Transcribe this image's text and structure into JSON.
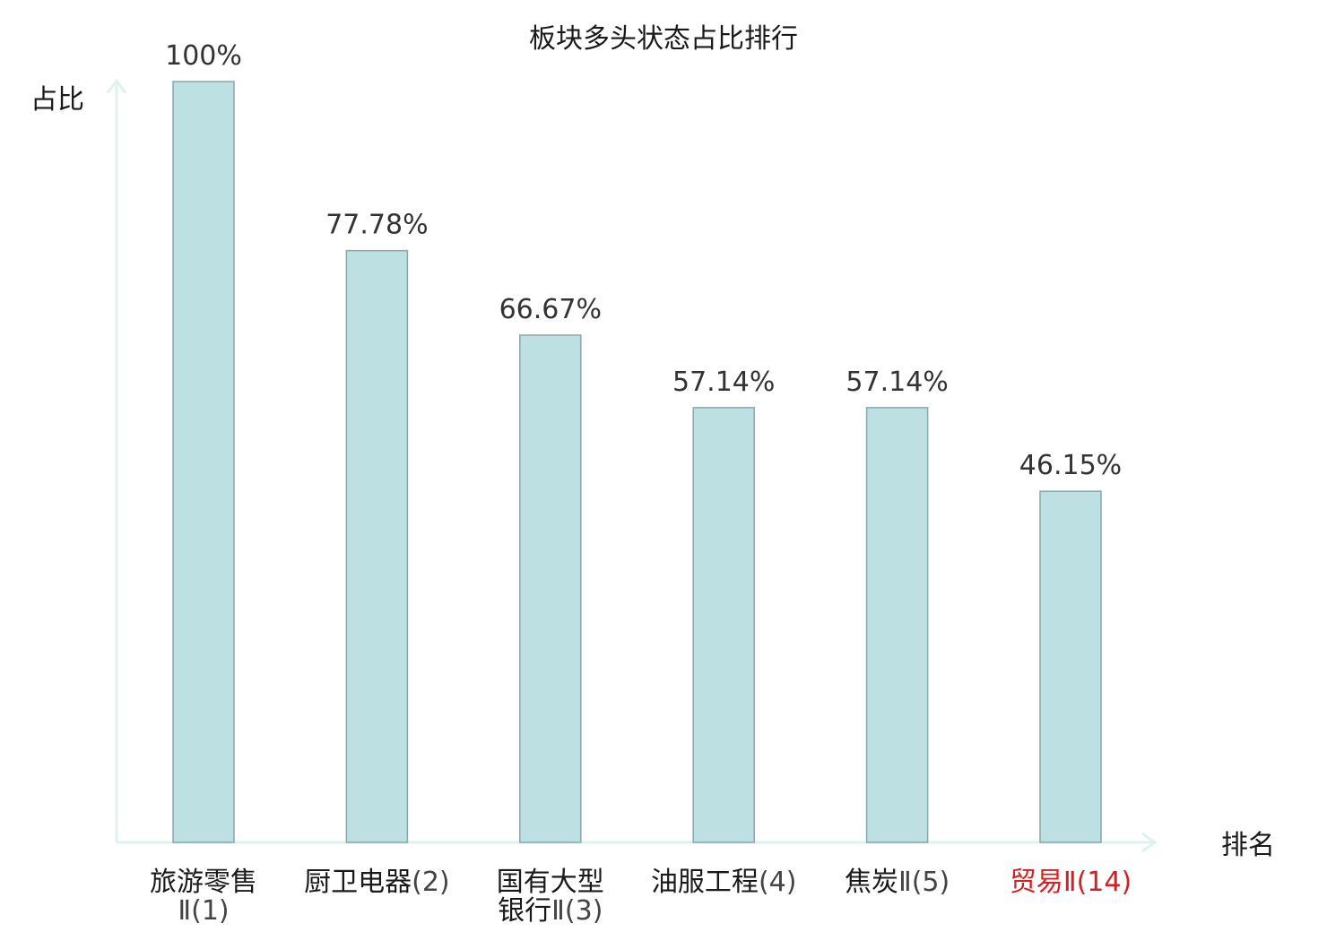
{
  "chart_data": {
    "type": "bar",
    "title": "板块多头状态占比排行",
    "ylabel": "占比",
    "xlabel": "排名",
    "ylim": [
      0,
      100
    ],
    "grid": false,
    "categories": [
      {
        "name_lines": [
          "旅游零售"
        ],
        "suffix_lines": [
          "Ⅱ(1)"
        ],
        "highlight": false
      },
      {
        "name_lines": [
          "厨卫电器"
        ],
        "suffix_lines": [
          "(2)"
        ],
        "highlight": false
      },
      {
        "name_lines": [
          "国有大型",
          "银行"
        ],
        "suffix_lines": [
          "",
          "Ⅱ(3)"
        ],
        "highlight": false
      },
      {
        "name_lines": [
          "油服工程"
        ],
        "suffix_lines": [
          "(4)"
        ],
        "highlight": false
      },
      {
        "name_lines": [
          "焦炭"
        ],
        "suffix_lines": [
          "Ⅱ(5)"
        ],
        "highlight": false
      },
      {
        "name_lines": [
          "贸易"
        ],
        "suffix_lines": [
          "Ⅱ(14)"
        ],
        "highlight": true
      }
    ],
    "values": [
      100,
      77.78,
      66.67,
      57.14,
      57.14,
      46.15
    ],
    "value_labels": [
      "100%",
      "77.78%",
      "66.67%",
      "57.14%",
      "57.14%",
      "46.15%"
    ],
    "colors": {
      "bar_fill": "#bde0e2",
      "bar_stroke": "#8aa7a9",
      "axis": "#e0f2ef",
      "text": "#1a1a1a",
      "suffix_text": "#444444",
      "highlight": "#d42020"
    }
  }
}
